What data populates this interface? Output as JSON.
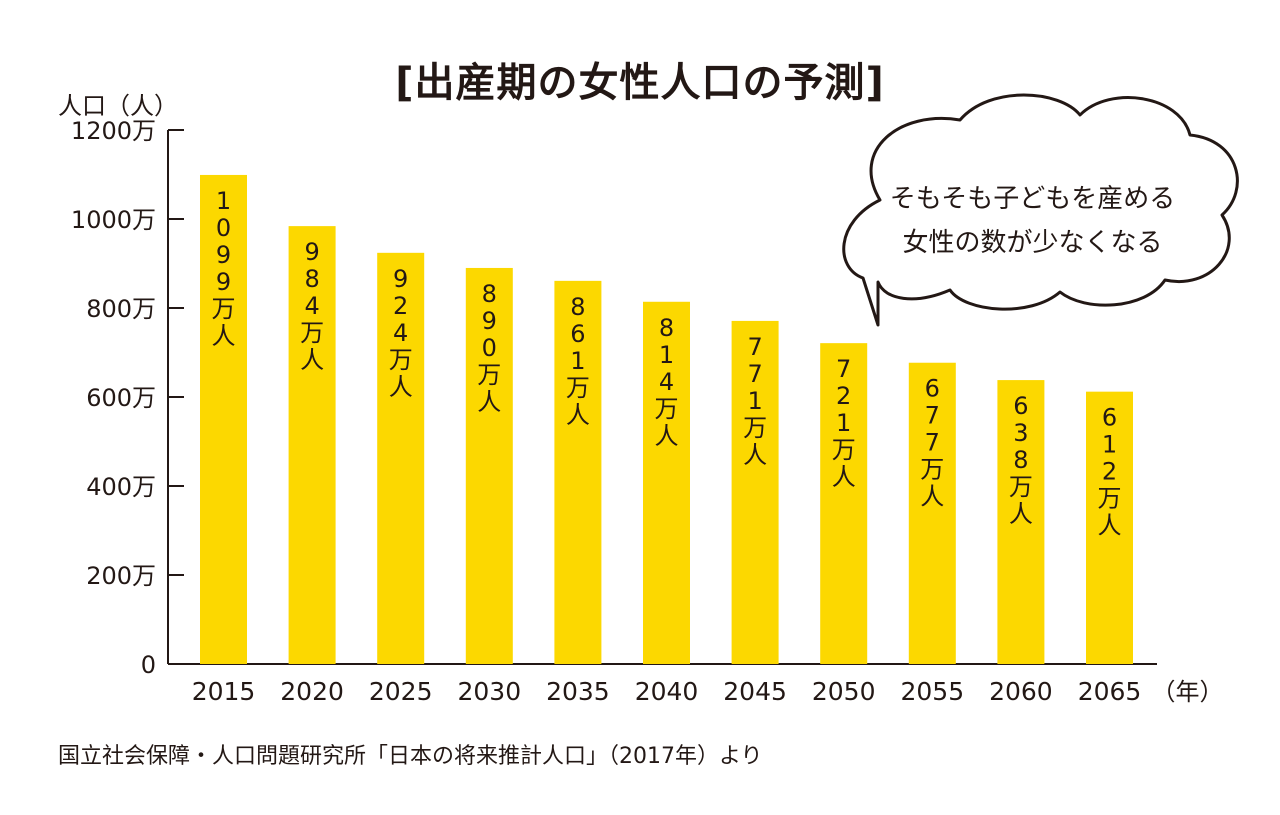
{
  "chart_data": {
    "type": "bar",
    "title": "[出産期の女性人口の予測]",
    "ylabel": "人口（人）",
    "x_unit": "（年）",
    "categories": [
      "2015",
      "2020",
      "2025",
      "2030",
      "2035",
      "2040",
      "2045",
      "2050",
      "2055",
      "2060",
      "2065"
    ],
    "values": [
      1099,
      984,
      924,
      890,
      861,
      814,
      771,
      721,
      677,
      638,
      612
    ],
    "value_labels": [
      "1099万人",
      "984万人",
      "924万人",
      "890万人",
      "861万人",
      "814万人",
      "771万人",
      "721万人",
      "677万人",
      "638万人",
      "612万人"
    ],
    "y_ticks": [
      0,
      200,
      400,
      600,
      800,
      1000,
      1200
    ],
    "y_tick_labels": [
      "0",
      "200万",
      "400万",
      "600万",
      "800万",
      "1000万",
      "1200万"
    ],
    "ylim": [
      0,
      1200
    ],
    "grid": false,
    "bar_color": "#FCD800"
  },
  "callout": {
    "line1": "そもそも子どもを産める",
    "line2": "女性の数が少なくなる"
  },
  "source": "国立社会保障・人口問題研究所「日本の将来推計人口」（2017年）より"
}
